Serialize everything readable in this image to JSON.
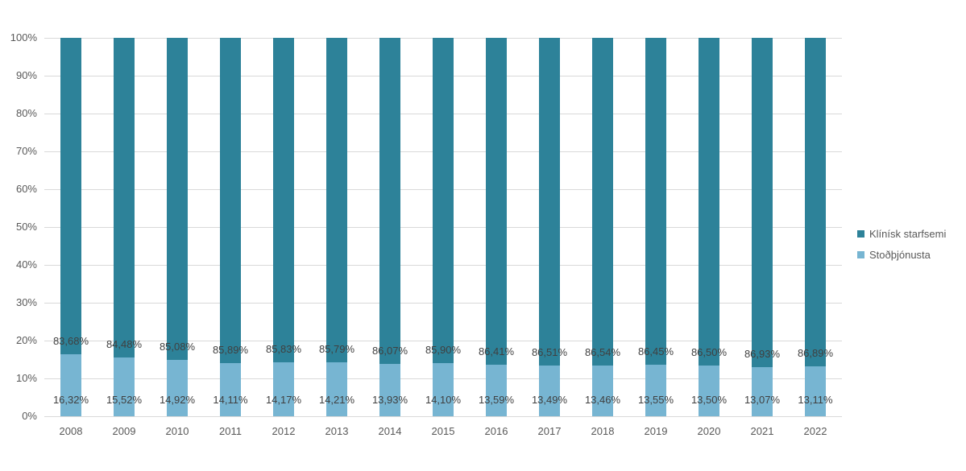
{
  "chart_data": {
    "type": "bar",
    "stacked": true,
    "percent_stacked": true,
    "title": "",
    "xlabel": "",
    "ylabel": "",
    "grid": true,
    "categories": [
      "2008",
      "2009",
      "2010",
      "2011",
      "2012",
      "2013",
      "2014",
      "2015",
      "2016",
      "2017",
      "2018",
      "2019",
      "2020",
      "2021",
      "2022"
    ],
    "series": [
      {
        "name": "Klínísk starfsemi",
        "color": "#2d8299",
        "values": [
          83.68,
          84.48,
          85.08,
          85.89,
          85.83,
          85.79,
          86.07,
          85.9,
          86.41,
          86.51,
          86.54,
          86.45,
          86.5,
          86.93,
          86.89
        ],
        "labels": [
          "83,68%",
          "84,48%",
          "85,08%",
          "85,89%",
          "85,83%",
          "85,79%",
          "86,07%",
          "85,90%",
          "86,41%",
          "86,51%",
          "86,54%",
          "86,45%",
          "86,50%",
          "86,93%",
          "86,89%"
        ]
      },
      {
        "name": "Stoðþjónusta",
        "color": "#77b5d2",
        "values": [
          16.32,
          15.52,
          14.92,
          14.11,
          14.17,
          14.21,
          13.93,
          14.1,
          13.59,
          13.49,
          13.46,
          13.55,
          13.5,
          13.07,
          13.11
        ],
        "labels": [
          "16,32%",
          "15,52%",
          "14,92%",
          "14,11%",
          "14,17%",
          "14,21%",
          "13,93%",
          "14,10%",
          "13,59%",
          "13,49%",
          "13,46%",
          "13,55%",
          "13,50%",
          "13,07%",
          "13,11%"
        ]
      }
    ],
    "y_axis": {
      "min": 0,
      "max": 100,
      "ticks": [
        "0%",
        "10%",
        "20%",
        "30%",
        "40%",
        "50%",
        "60%",
        "70%",
        "80%",
        "90%",
        "100%"
      ]
    },
    "legend": {
      "position": "right",
      "entries": [
        "Klínísk starfsemi",
        "Stoðþjónusta"
      ]
    },
    "colors": {
      "gridline": "#d9d9d9",
      "axis_text": "#595959",
      "data_label_text": "#404040",
      "background": "#ffffff"
    }
  }
}
